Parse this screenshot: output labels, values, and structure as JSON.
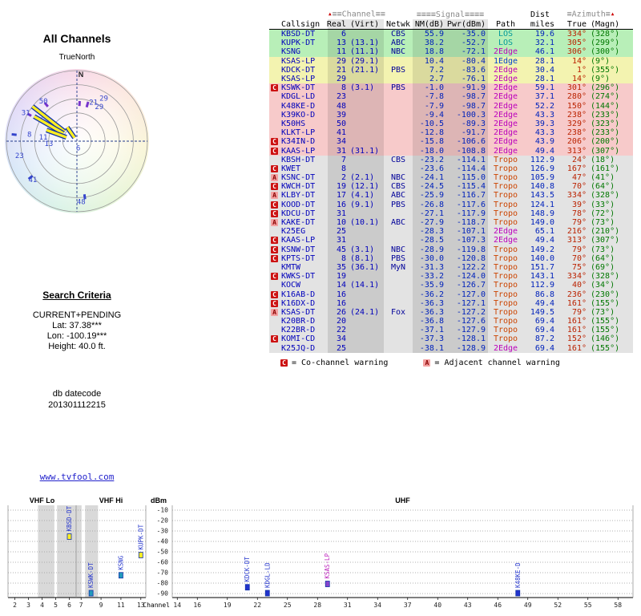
{
  "colors": {
    "callsign": "#0000bb",
    "path_los": "#009999",
    "path_1edge": "#0044cc",
    "path_2edge": "#bb00bb",
    "path_tropo": "#cc4400",
    "azimuth_true": "#bb2200",
    "azimuth_magn": "#007700",
    "band_green": "#b8efb8",
    "band_yellow": "#f3f3b0",
    "band_pink": "#f7caca",
    "band_gray": "#e3e3e3",
    "co_channel_badge": "#cc1111",
    "adjacent_badge": "#f4a0a0"
  },
  "icons": {
    "sort_arrow_up": "▲"
  },
  "polar": {
    "title": "All Channels",
    "subtitle": "TrueNorth"
  },
  "search": {
    "heading": "Search Criteria",
    "lines": [
      "CURRENT+PENDING",
      "Lat: 37.38***",
      "Lon: -100.19***",
      "Height: 40.0 ft."
    ],
    "line1": "CURRENT+PENDING",
    "line2": "Lat: 37.38***",
    "line3": "Lon: -100.19***",
    "line4": "Height: 40.0 ft.",
    "datecode_label": "db datecode",
    "datecode": "201301112215"
  },
  "link": {
    "label": "www.tvfool.com"
  },
  "table": {
    "group_headers": {
      "channel": "≡≡Channel≡≡",
      "signal": "≡≡≡≡Signal≡≡≡≡",
      "dist": "Dist",
      "azimuth": "≡Azimuth≡"
    },
    "col_headers": {
      "callsign": "Callsign",
      "real": "Real",
      "virt": "(Virt)",
      "netwk": "Netwk",
      "nm": "NM(dB)",
      "pwr": "Pwr(dBm)",
      "path": "Path",
      "miles": "miles",
      "true": "True",
      "magn": "(Magn)"
    },
    "rows": [
      {
        "b": "",
        "cs": "KBSD-DT",
        "re": "6",
        "vi": "",
        "nw": "CBS",
        "nm": "55.9",
        "pw": "-35.0",
        "pa": "LOS",
        "mi": "19.6",
        "at": "334°",
        "am": "(328°)",
        "band": "green"
      },
      {
        "b": "",
        "cs": "KUPK-DT",
        "re": "13",
        "vi": "(13.1)",
        "nw": "ABC",
        "nm": "38.2",
        "pw": "-52.7",
        "pa": "LOS",
        "mi": "32.1",
        "at": "305°",
        "am": "(299°)",
        "band": "green"
      },
      {
        "b": "",
        "cs": "KSNG",
        "re": "11",
        "vi": "(11.1)",
        "nw": "NBC",
        "nm": "18.8",
        "pw": "-72.1",
        "pa": "2Edge",
        "mi": "46.1",
        "at": "306°",
        "am": "(300°)",
        "band": "green"
      },
      {
        "b": "",
        "cs": "KSAS-LP",
        "re": "29",
        "vi": "(29.1)",
        "nw": "",
        "nm": "10.4",
        "pw": "-80.4",
        "pa": "1Edge",
        "mi": "28.1",
        "at": "14°",
        "am": "(9°)",
        "band": "yellow"
      },
      {
        "b": "",
        "cs": "KDCK-DT",
        "re": "21",
        "vi": "(21.1)",
        "nw": "PBS",
        "nm": "7.2",
        "pw": "-83.6",
        "pa": "2Edge",
        "mi": "30.4",
        "at": "1°",
        "am": "(355°)",
        "band": "yellow"
      },
      {
        "b": "",
        "cs": "KSAS-LP",
        "re": "29",
        "vi": "",
        "nw": "",
        "nm": "2.7",
        "pw": "-76.1",
        "pa": "2Edge",
        "mi": "28.1",
        "at": "14°",
        "am": "(9°)",
        "band": "yellow"
      },
      {
        "b": "C",
        "cs": "KSWK-DT",
        "re": "8",
        "vi": "(3.1)",
        "nw": "PBS",
        "nm": "-1.0",
        "pw": "-91.9",
        "pa": "2Edge",
        "mi": "59.1",
        "at": "301°",
        "am": "(296°)",
        "band": "pink"
      },
      {
        "b": "",
        "cs": "KDGL-LD",
        "re": "23",
        "vi": "",
        "nw": "",
        "nm": "-7.8",
        "pw": "-98.7",
        "pa": "2Edge",
        "mi": "37.1",
        "at": "280°",
        "am": "(274°)",
        "band": "pink"
      },
      {
        "b": "",
        "cs": "K48KE-D",
        "re": "48",
        "vi": "",
        "nw": "",
        "nm": "-7.9",
        "pw": "-98.7",
        "pa": "2Edge",
        "mi": "52.2",
        "at": "150°",
        "am": "(144°)",
        "band": "pink"
      },
      {
        "b": "",
        "cs": "K39KO-D",
        "re": "39",
        "vi": "",
        "nw": "",
        "nm": "-9.4",
        "pw": "-100.3",
        "pa": "2Edge",
        "mi": "43.3",
        "at": "238°",
        "am": "(233°)",
        "band": "pink"
      },
      {
        "b": "",
        "cs": "K50HS",
        "re": "50",
        "vi": "",
        "nw": "",
        "nm": "-10.5",
        "pw": "-89.3",
        "pa": "2Edge",
        "mi": "39.3",
        "at": "329°",
        "am": "(323°)",
        "band": "pink"
      },
      {
        "b": "",
        "cs": "KLKT-LP",
        "re": "41",
        "vi": "",
        "nw": "",
        "nm": "-12.8",
        "pw": "-91.7",
        "pa": "2Edge",
        "mi": "43.3",
        "at": "238°",
        "am": "(233°)",
        "band": "pink"
      },
      {
        "b": "C",
        "cs": "K34IN-D",
        "re": "34",
        "vi": "",
        "nw": "",
        "nm": "-15.8",
        "pw": "-106.6",
        "pa": "2Edge",
        "mi": "43.9",
        "at": "206°",
        "am": "(200°)",
        "band": "pink"
      },
      {
        "b": "C",
        "cs": "KAAS-LP",
        "re": "31",
        "vi": "(31.1)",
        "nw": "",
        "nm": "-18.0",
        "pw": "-108.8",
        "pa": "2Edge",
        "mi": "49.4",
        "at": "313°",
        "am": "(307°)",
        "band": "pink"
      },
      {
        "b": "",
        "cs": "KBSH-DT",
        "re": "7",
        "vi": "",
        "nw": "CBS",
        "nm": "-23.2",
        "pw": "-114.1",
        "pa": "Tropo",
        "mi": "112.9",
        "at": "24°",
        "am": "(18°)",
        "band": "gray"
      },
      {
        "b": "C",
        "cs": "KWET",
        "re": "8",
        "vi": "",
        "nw": "",
        "nm": "-23.6",
        "pw": "-114.4",
        "pa": "Tropo",
        "mi": "126.9",
        "at": "167°",
        "am": "(161°)",
        "band": "gray"
      },
      {
        "b": "A",
        "cs": "KSNC-DT",
        "re": "2",
        "vi": "(2.1)",
        "nw": "NBC",
        "nm": "-24.1",
        "pw": "-115.0",
        "pa": "Tropo",
        "mi": "105.9",
        "at": "47°",
        "am": "(41°)",
        "band": "gray"
      },
      {
        "b": "C",
        "cs": "KWCH-DT",
        "re": "19",
        "vi": "(12.1)",
        "nw": "CBS",
        "nm": "-24.5",
        "pw": "-115.4",
        "pa": "Tropo",
        "mi": "140.8",
        "at": "70°",
        "am": "(64°)",
        "band": "gray"
      },
      {
        "b": "A",
        "cs": "KLBY-DT",
        "re": "17",
        "vi": "(4.1)",
        "nw": "ABC",
        "nm": "-25.9",
        "pw": "-116.7",
        "pa": "Tropo",
        "mi": "143.5",
        "at": "334°",
        "am": "(328°)",
        "band": "gray"
      },
      {
        "b": "C",
        "cs": "KOOD-DT",
        "re": "16",
        "vi": "(9.1)",
        "nw": "PBS",
        "nm": "-26.8",
        "pw": "-117.6",
        "pa": "Tropo",
        "mi": "124.1",
        "at": "39°",
        "am": "(33°)",
        "band": "gray"
      },
      {
        "b": "C",
        "cs": "KDCU-DT",
        "re": "31",
        "vi": "",
        "nw": "",
        "nm": "-27.1",
        "pw": "-117.9",
        "pa": "Tropo",
        "mi": "148.9",
        "at": "78°",
        "am": "(72°)",
        "band": "gray"
      },
      {
        "b": "A",
        "cs": "KAKE-DT",
        "re": "10",
        "vi": "(10.1)",
        "nw": "ABC",
        "nm": "-27.9",
        "pw": "-118.7",
        "pa": "Tropo",
        "mi": "149.0",
        "at": "79°",
        "am": "(73°)",
        "band": "gray"
      },
      {
        "b": "",
        "cs": "K25EG",
        "re": "25",
        "vi": "",
        "nw": "",
        "nm": "-28.3",
        "pw": "-107.1",
        "pa": "2Edge",
        "mi": "65.1",
        "at": "216°",
        "am": "(210°)",
        "band": "gray"
      },
      {
        "b": "C",
        "cs": "KAAS-LP",
        "re": "31",
        "vi": "",
        "nw": "",
        "nm": "-28.5",
        "pw": "-107.3",
        "pa": "2Edge",
        "mi": "49.4",
        "at": "313°",
        "am": "(307°)",
        "band": "gray"
      },
      {
        "b": "C",
        "cs": "KSNW-DT",
        "re": "45",
        "vi": "(3.1)",
        "nw": "NBC",
        "nm": "-28.9",
        "pw": "-119.8",
        "pa": "Tropo",
        "mi": "149.2",
        "at": "79°",
        "am": "(73°)",
        "band": "gray"
      },
      {
        "b": "C",
        "cs": "KPTS-DT",
        "re": "8",
        "vi": "(8.1)",
        "nw": "PBS",
        "nm": "-30.0",
        "pw": "-120.8",
        "pa": "Tropo",
        "mi": "140.0",
        "at": "70°",
        "am": "(64°)",
        "band": "gray"
      },
      {
        "b": "",
        "cs": "KMTW",
        "re": "35",
        "vi": "(36.1)",
        "nw": "MyN",
        "nm": "-31.3",
        "pw": "-122.2",
        "pa": "Tropo",
        "mi": "151.7",
        "at": "75°",
        "am": "(69°)",
        "band": "gray"
      },
      {
        "b": "C",
        "cs": "KWKS-DT",
        "re": "19",
        "vi": "",
        "nw": "",
        "nm": "-33.2",
        "pw": "-124.0",
        "pa": "Tropo",
        "mi": "143.1",
        "at": "334°",
        "am": "(328°)",
        "band": "gray"
      },
      {
        "b": "",
        "cs": "KOCW",
        "re": "14",
        "vi": "(14.1)",
        "nw": "",
        "nm": "-35.9",
        "pw": "-126.7",
        "pa": "Tropo",
        "mi": "112.9",
        "at": "40°",
        "am": "(34°)",
        "band": "gray"
      },
      {
        "b": "C",
        "cs": "K16AB-D",
        "re": "16",
        "vi": "",
        "nw": "",
        "nm": "-36.2",
        "pw": "-127.0",
        "pa": "Tropo",
        "mi": "86.8",
        "at": "236°",
        "am": "(230°)",
        "band": "gray"
      },
      {
        "b": "C",
        "cs": "K16DX-D",
        "re": "16",
        "vi": "",
        "nw": "",
        "nm": "-36.3",
        "pw": "-127.1",
        "pa": "Tropo",
        "mi": "49.4",
        "at": "161°",
        "am": "(155°)",
        "band": "gray"
      },
      {
        "b": "A",
        "cs": "KSAS-DT",
        "re": "26",
        "vi": "(24.1)",
        "nw": "Fox",
        "nm": "-36.3",
        "pw": "-127.2",
        "pa": "Tropo",
        "mi": "149.5",
        "at": "79°",
        "am": "(73°)",
        "band": "gray"
      },
      {
        "b": "",
        "cs": "K20BR-D",
        "re": "20",
        "vi": "",
        "nw": "",
        "nm": "-36.8",
        "pw": "-127.6",
        "pa": "Tropo",
        "mi": "69.4",
        "at": "161°",
        "am": "(155°)",
        "band": "gray"
      },
      {
        "b": "",
        "cs": "K22BR-D",
        "re": "22",
        "vi": "",
        "nw": "",
        "nm": "-37.1",
        "pw": "-127.9",
        "pa": "Tropo",
        "mi": "69.4",
        "at": "161°",
        "am": "(155°)",
        "band": "gray"
      },
      {
        "b": "C",
        "cs": "KOMI-CD",
        "re": "34",
        "vi": "",
        "nw": "",
        "nm": "-37.3",
        "pw": "-128.1",
        "pa": "Tropo",
        "mi": "87.2",
        "at": "152°",
        "am": "(146°)",
        "band": "gray"
      },
      {
        "b": "",
        "cs": "K25JQ-D",
        "re": "25",
        "vi": "",
        "nw": "",
        "nm": "-38.1",
        "pw": "-128.9",
        "pa": "2Edge",
        "mi": "69.4",
        "at": "161°",
        "am": "(155°)",
        "band": "gray"
      }
    ],
    "legend": [
      {
        "badge": "C",
        "text": "= Co-channel warning"
      },
      {
        "badge": "A",
        "text": "= Adjacent channel warning"
      }
    ]
  },
  "chart_data": [
    {
      "type": "scatter",
      "subtype": "polar-radar",
      "title": "All Channels",
      "subtitle": "TrueNorth",
      "north_label": "N",
      "rings": [
        1.0,
        0.8,
        0.6,
        0.4,
        0.2
      ],
      "points": [
        {
          "label": "29",
          "angle": 32,
          "r": 0.72
        },
        {
          "label": "29",
          "angle": 33,
          "r": 0.58
        },
        {
          "label": "21",
          "angle": 23,
          "r": 0.6
        },
        {
          "label": "50",
          "angle": -40,
          "r": 0.74
        },
        {
          "label": "31",
          "angle": -61,
          "r": 0.83
        },
        {
          "label": "8",
          "angle": -82,
          "r": 0.68
        },
        {
          "label": "11",
          "angle": -83,
          "r": 0.48
        },
        {
          "label": "13",
          "angle": -95,
          "r": 0.4
        },
        {
          "label": "6",
          "angle": 170,
          "r": 0.1
        },
        {
          "label": "23",
          "angle": -104,
          "r": 0.84
        },
        {
          "label": "41",
          "angle": -131,
          "r": 0.83
        },
        {
          "label": "48",
          "angle": 176,
          "r": 0.86
        }
      ],
      "beams": [
        {
          "angle": -52,
          "r0": 0.22,
          "r1": 0.8
        },
        {
          "angle": -60,
          "r0": 0.22,
          "r1": 0.7
        },
        {
          "angle": -70,
          "r0": 0.16,
          "r1": 0.46
        },
        {
          "angle": -35,
          "r0": 0.06,
          "r1": 0.24
        }
      ],
      "ticks": [
        {
          "angle": 16,
          "r0": 0.5,
          "r1": 0.58,
          "color": "#7733cc"
        },
        {
          "angle": 4,
          "r0": 0.5,
          "r1": 0.57,
          "color": "#7733cc"
        },
        {
          "angle": -40,
          "r0": 0.64,
          "r1": 0.71,
          "color": "#7733cc"
        },
        {
          "angle": -61,
          "r0": 0.74,
          "r1": 0.8,
          "color": "#7733cc"
        },
        {
          "angle": -84,
          "r0": 0.86,
          "r1": 0.93,
          "color": "#3344cc"
        },
        {
          "angle": -128,
          "r0": 0.8,
          "r1": 0.87,
          "color": "#3344cc"
        },
        {
          "angle": 172,
          "r0": 0.76,
          "r1": 0.83,
          "color": "#3344cc"
        }
      ]
    },
    {
      "type": "bar",
      "ylabel": "dBm",
      "xlabel": "Channel",
      "yticks": [
        -10,
        -20,
        -30,
        -40,
        -50,
        -60,
        -70,
        -80,
        -90
      ],
      "panels": [
        {
          "name": "VHF Lo",
          "ch_min": 2,
          "ch_max": 6,
          "tick_labels": [
            2,
            3,
            4,
            5,
            6
          ],
          "stripes": [
            [
              3.7,
              4.9
            ],
            [
              5.1,
              6.9
            ]
          ]
        },
        {
          "name": "VHF Hi",
          "ch_min": 7,
          "ch_max": 13,
          "tick_labels": [
            7,
            9,
            11,
            13
          ],
          "stripes": [
            [
              7.4,
              8.7
            ]
          ]
        },
        {
          "name": "UHF",
          "ch_min": 14,
          "ch_max": 59,
          "tick_labels": [
            14,
            16,
            19,
            22,
            25,
            28,
            31,
            34,
            37,
            40,
            43,
            46,
            49,
            52,
            55,
            58
          ],
          "stripes": []
        }
      ],
      "bars": [
        {
          "callsign": "KBSD-DT",
          "channel": 6,
          "pwr_dbm": -35.0,
          "fill": "#ffee22",
          "label_color": "#2233cc"
        },
        {
          "callsign": "KSWK-DT",
          "channel": 8,
          "pwr_dbm": -91.9,
          "fill": "#2299bb",
          "label_color": "#2233cc"
        },
        {
          "callsign": "KSNG",
          "channel": 11,
          "pwr_dbm": -72.1,
          "fill": "#2299bb",
          "label_color": "#2233cc"
        },
        {
          "callsign": "KUPK-DT",
          "channel": 13,
          "pwr_dbm": -52.7,
          "fill": "#ffee22",
          "label_color": "#2233cc"
        },
        {
          "callsign": "KDCK-DT",
          "channel": 21,
          "pwr_dbm": -83.6,
          "fill": "#2233cc",
          "label_color": "#2233cc"
        },
        {
          "callsign": "KDGL-LD",
          "channel": 23,
          "pwr_dbm": -98.7,
          "fill": "#2233cc",
          "label_color": "#2233cc"
        },
        {
          "callsign": "KSAS-LP",
          "channel": 29,
          "pwr_dbm": -80.4,
          "fill": "#8844cc",
          "label_color": "#bb22bb"
        },
        {
          "callsign": "K48KE-D",
          "channel": 48,
          "pwr_dbm": -98.7,
          "fill": "#2233cc",
          "label_color": "#2233cc"
        }
      ]
    }
  ]
}
